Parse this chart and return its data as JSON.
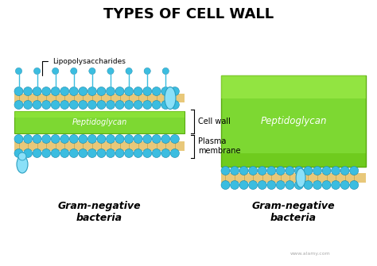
{
  "title": "TYPES OF CELL WALL",
  "bg_color": "#ffffff",
  "left_label_line1": "Gram-negative",
  "left_label_line2": "bacteria",
  "right_label_line1": "Gram-negative",
  "right_label_line2": "bacteria",
  "lps_label": "Lipopolysaccharides",
  "cell_wall_label": "Cell wall",
  "plasma_membrane_label": "Plasma\nmembrane",
  "peptidoglycan_label": "Peptidoglycan",
  "peptidoglycan_color_dark": "#5cb800",
  "peptidoglycan_color_light": "#88e030",
  "membrane_tail_color": "#e8c87a",
  "bead_color": "#3bbde0",
  "bead_outline": "#1a88aa",
  "lps_color": "#3bbde0",
  "protein_color": "#7ad8f0",
  "protein_outline": "#2a9ec0"
}
